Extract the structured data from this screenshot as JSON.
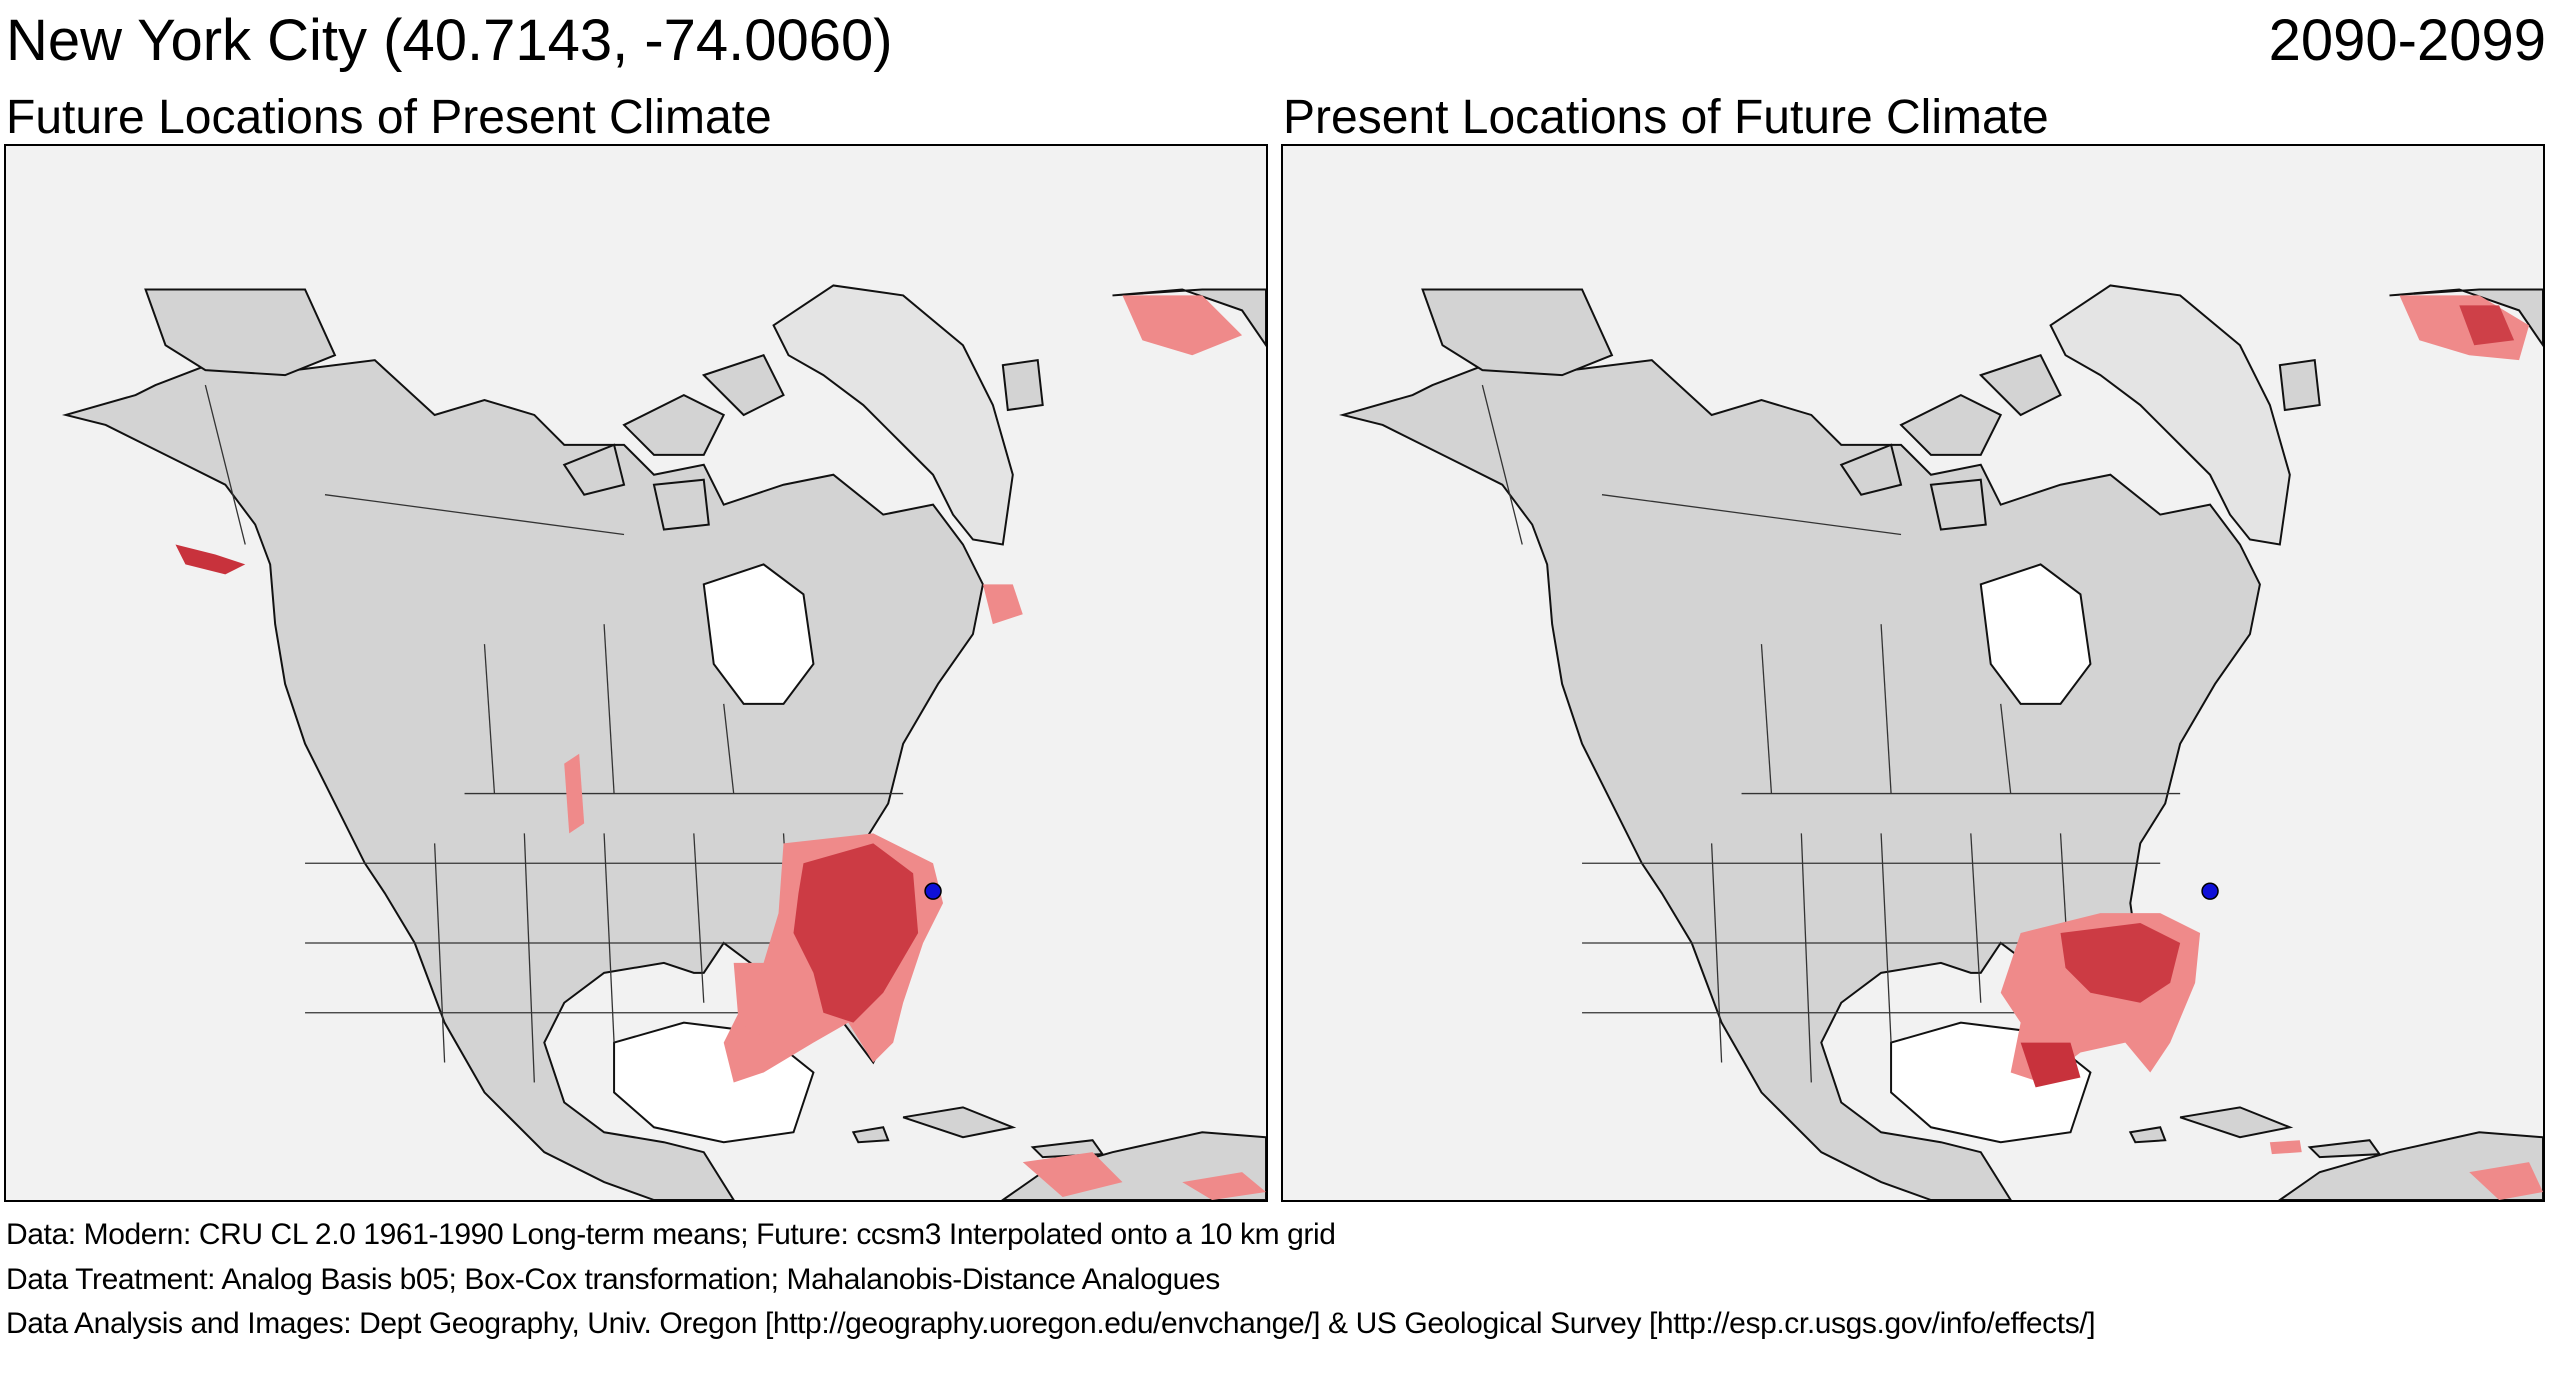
{
  "header": {
    "location_title": "New York City  (40.7143, -74.0060)",
    "period": "2090-2099"
  },
  "panels": [
    {
      "title": "Future Locations of Present Climate"
    },
    {
      "title": "Present Locations of Future Climate"
    }
  ],
  "footer": {
    "data_line": "Data:  Modern: CRU CL 2.0 1961-1990 Long-term means; Future: ccsm3 Interpolated onto a 10 km grid",
    "treatment_line": "Data Treatment:  Analog Basis b05; Box-Cox transformation; Mahalanobis-Distance Analogues",
    "analysis_line": "Data Analysis and Images:  Dept Geography, Univ. Oregon [http://geography.uoregon.edu/envchange/] & US Geological Survey [http://esp.cr.usgs.gov/info/effects/]"
  },
  "colors": {
    "ocean": "#f2f2f2",
    "land": "#d3d3d3",
    "analog_light": "#ef8a8a",
    "analog_dark": "#c8323c",
    "city_marker": "#1010d8"
  },
  "marker": {
    "city": "New York City",
    "lat": 40.7143,
    "lon": -74.006
  }
}
